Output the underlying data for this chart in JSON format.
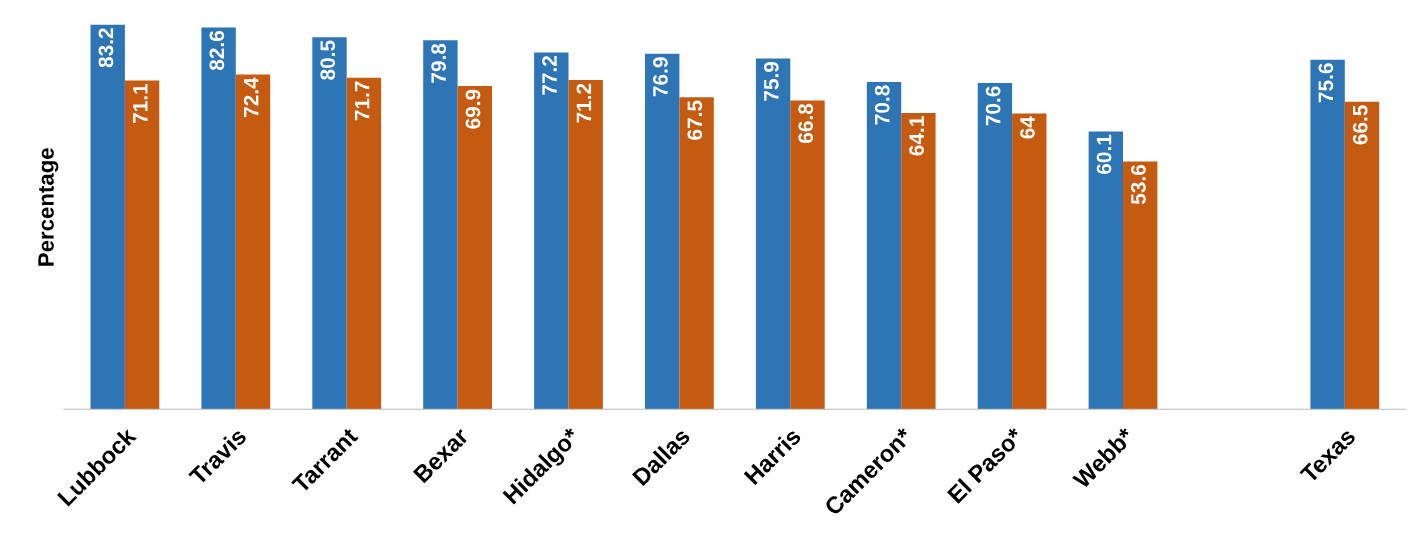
{
  "chart_data": {
    "type": "bar",
    "ylabel": "Percentage",
    "categories": [
      "Lubbock",
      "Travis",
      "Tarrant",
      "Bexar",
      "Hidalgo*",
      "Dallas",
      "Harris",
      "Cameron*",
      "El Paso*",
      "Webb*",
      null,
      "Texas"
    ],
    "series": [
      {
        "color": "#2e75b6",
        "values": [
          83.2,
          82.6,
          80.5,
          79.8,
          77.2,
          76.9,
          75.9,
          70.8,
          70.6,
          60.1,
          null,
          75.6
        ]
      },
      {
        "color": "#c55a11",
        "values": [
          71.1,
          72.4,
          71.7,
          69.9,
          71.2,
          67.5,
          66.8,
          64.1,
          64,
          53.6,
          null,
          66.5
        ]
      }
    ],
    "data_labels": true,
    "grid": false,
    "legend": false
  }
}
